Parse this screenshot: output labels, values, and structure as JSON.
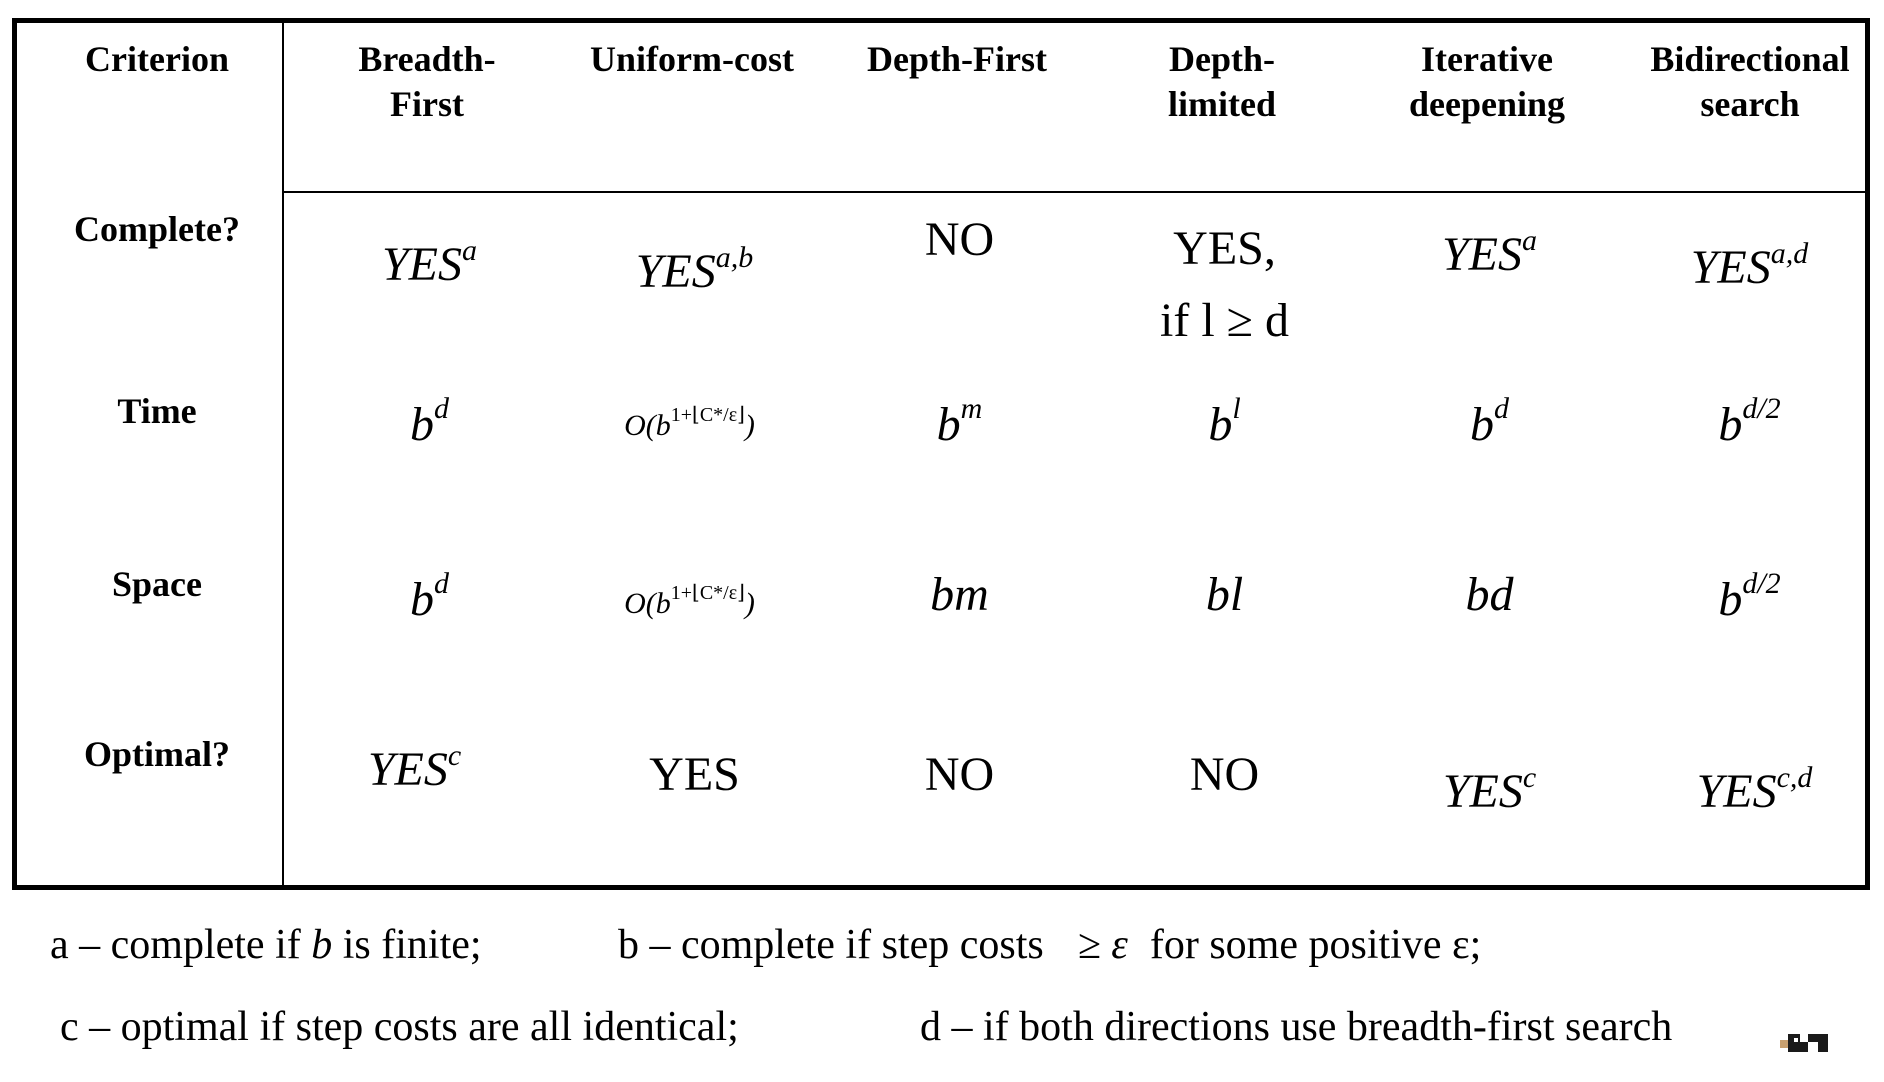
{
  "table": {
    "headers": [
      "Criterion",
      "Breadth-\nFirst",
      "Uniform-cost",
      "Depth-First",
      "Depth-\nlimited",
      "Iterative\ndeepening",
      "Bidirectional\nsearch"
    ],
    "rows": [
      {
        "label": "Complete?"
      },
      {
        "label": "Time"
      },
      {
        "label": "Space"
      },
      {
        "label": "Optimal?"
      }
    ],
    "complete": {
      "breadth_first": {
        "text": "YES",
        "sup": "a"
      },
      "uniform_cost": {
        "text": "YES",
        "sup": "a,b"
      },
      "depth_first": {
        "text": "NO"
      },
      "depth_limited": {
        "line1": "YES,",
        "line2": "if l ≥ d"
      },
      "iterative": {
        "text": "YES",
        "sup": "a"
      },
      "bidirectional": {
        "text": "YES",
        "sup": "a,d"
      }
    },
    "time": {
      "breadth_first": {
        "base": "b",
        "sup": "d"
      },
      "uniform_cost": {
        "prefix": "O(b",
        "sup": "1+⌊C*/ε⌋",
        "suffix": ")"
      },
      "depth_first": {
        "base": "b",
        "sup": "m"
      },
      "depth_limited": {
        "base": "b",
        "sup": "l"
      },
      "iterative": {
        "base": "b",
        "sup": "d"
      },
      "bidirectional": {
        "base": "b",
        "sup": "d/2"
      }
    },
    "space": {
      "breadth_first": {
        "base": "b",
        "sup": "d"
      },
      "uniform_cost": {
        "prefix": "O(b",
        "sup": "1+⌊C*/ε⌋",
        "suffix": ")"
      },
      "depth_first": {
        "text": "bm"
      },
      "depth_limited": {
        "text": "bl"
      },
      "iterative": {
        "text": "bd"
      },
      "bidirectional": {
        "base": "b",
        "sup": "d/2"
      }
    },
    "optimal": {
      "breadth_first": {
        "text": "YES",
        "sup": "c"
      },
      "uniform_cost": {
        "text": "YES"
      },
      "depth_first": {
        "text": "NO"
      },
      "depth_limited": {
        "text": "NO"
      },
      "iterative": {
        "text": "YES",
        "sup": "c"
      },
      "bidirectional": {
        "text": "YES",
        "sup": "c,d"
      }
    }
  },
  "footnotes": {
    "a": {
      "pre": "a – complete if ",
      "var": "b",
      "post": " is finite;"
    },
    "b": {
      "pre": "b – complete if step costs",
      "sym": "≥ ε",
      "post": "for some positive ε;"
    },
    "c": {
      "text": "c – optimal if step costs are all identical;"
    },
    "d": {
      "text": "d – if both directions use breadth-first search"
    }
  }
}
